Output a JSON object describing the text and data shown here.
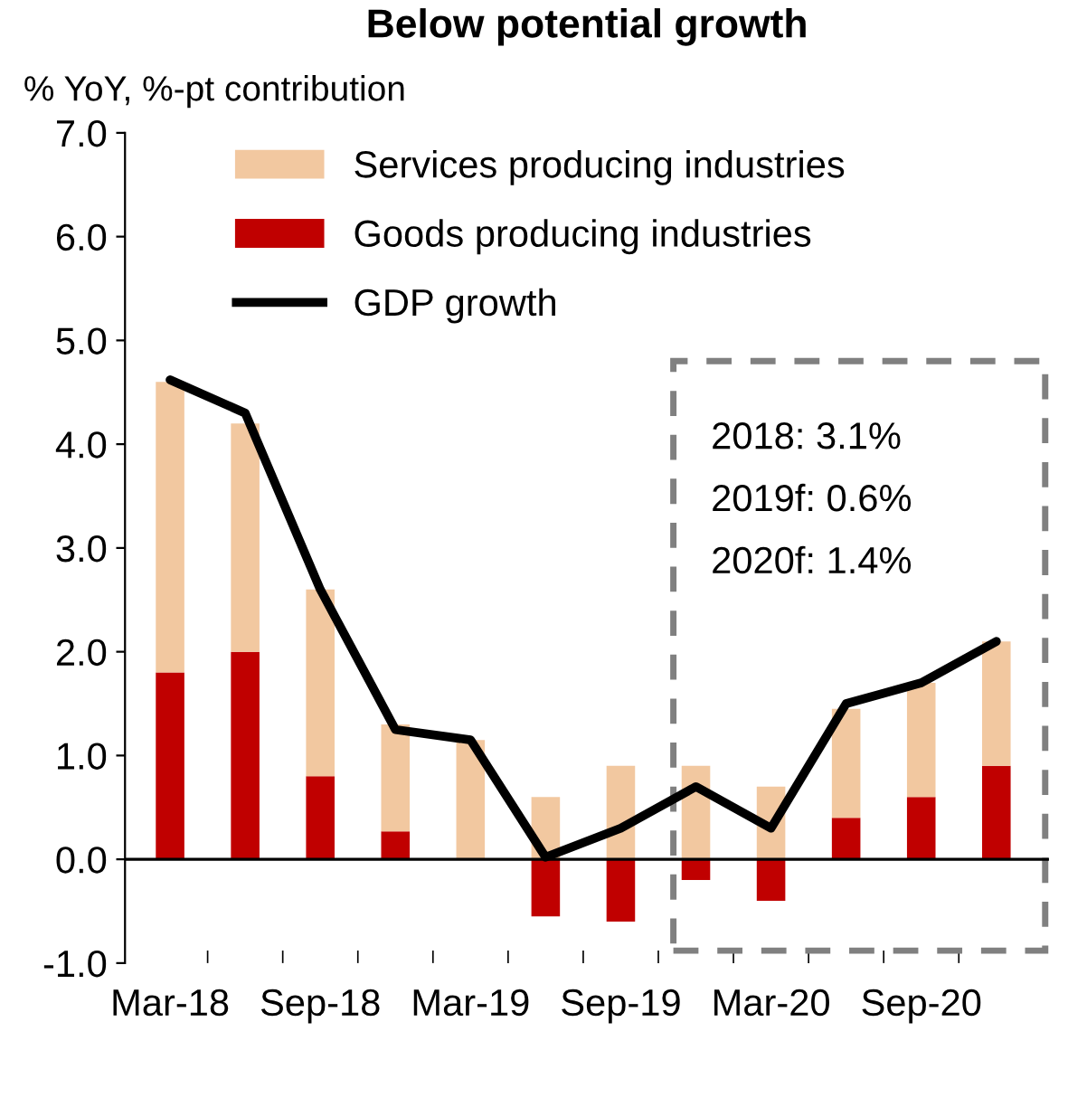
{
  "chart_data": {
    "type": "bar",
    "stacked": true,
    "title": "Below potential growth",
    "ylabel": "% YoY, %-pt contribution",
    "categories": [
      "Mar-18",
      null,
      "Sep-18",
      null,
      "Mar-19",
      null,
      "Sep-19",
      null,
      "Mar-20",
      null,
      "Sep-20",
      null
    ],
    "series": [
      {
        "name": "Goods producing industries",
        "color": "#c00000",
        "values": [
          1.8,
          2.0,
          0.8,
          0.27,
          0,
          -0.55,
          -0.6,
          -0.2,
          -0.4,
          0.4,
          0.6,
          0.9
        ]
      },
      {
        "name": "Services producing industries",
        "color": "#f2c8a0",
        "values": [
          2.8,
          2.2,
          1.8,
          1.03,
          1.15,
          0.6,
          0.9,
          0.9,
          0.7,
          1.05,
          1.1,
          1.2
        ]
      },
      {
        "name": "GDP growth",
        "type": "line",
        "color": "#000000",
        "values": [
          4.62,
          4.3,
          2.6,
          1.25,
          1.15,
          0.02,
          0.3,
          0.7,
          0.3,
          1.5,
          1.7,
          2.1
        ]
      }
    ],
    "ylim": [
      -1.0,
      7.0
    ],
    "yticks": [
      {
        "value": -1,
        "label": "-1.0"
      },
      {
        "value": 0,
        "label": "0.0"
      },
      {
        "value": 1,
        "label": "1.0"
      },
      {
        "value": 2,
        "label": "2.0"
      },
      {
        "value": 3,
        "label": "3.0"
      },
      {
        "value": 4,
        "label": "4.0"
      },
      {
        "value": 5,
        "label": "5.0"
      },
      {
        "value": 6,
        "label": "6.0"
      },
      {
        "value": 7,
        "label": "7.0"
      }
    ],
    "ref_lines": [
      {
        "axis": "y",
        "value": 0,
        "color": "#000000"
      }
    ],
    "annotations": [
      "2018: 3.1%",
      "2019f: 0.6%",
      "2020f: 1.4%"
    ],
    "legend": "top",
    "grid": false,
    "marker": "none",
    "line_style": "solid"
  }
}
